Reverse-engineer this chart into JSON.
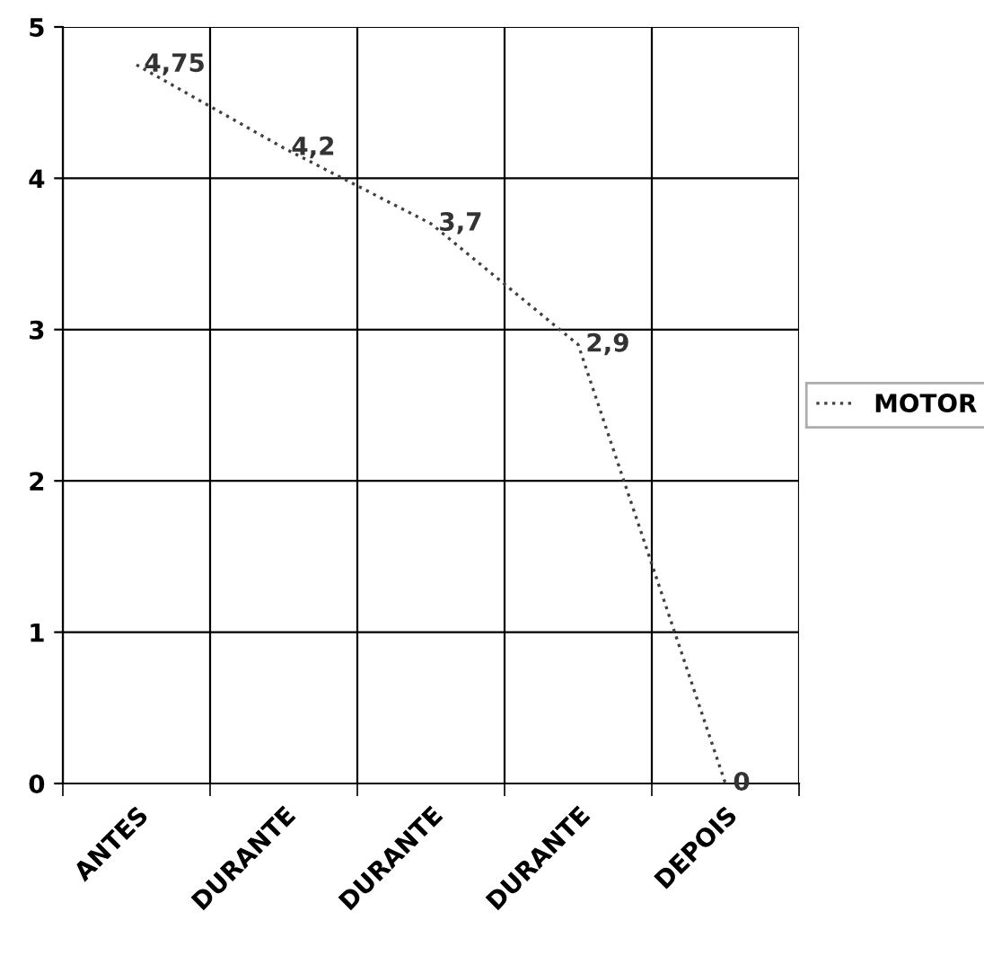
{
  "chart_data": {
    "type": "line",
    "categories": [
      "ANTES",
      "DURANTE",
      "DURANTE",
      "DURANTE",
      "DEPOIS"
    ],
    "series": [
      {
        "name": "MOTOR",
        "color": "#404040",
        "values": [
          4.75,
          4.2,
          3.7,
          2.9,
          0
        ],
        "value_labels": [
          "4,75",
          "4,2",
          "3,7",
          "2,9",
          "0"
        ]
      }
    ],
    "ylim": [
      0,
      5
    ],
    "yticks": [
      0,
      1,
      2,
      3,
      4,
      5
    ],
    "grid": true,
    "legend": "right",
    "marker": "none",
    "line_style": "dotted"
  }
}
